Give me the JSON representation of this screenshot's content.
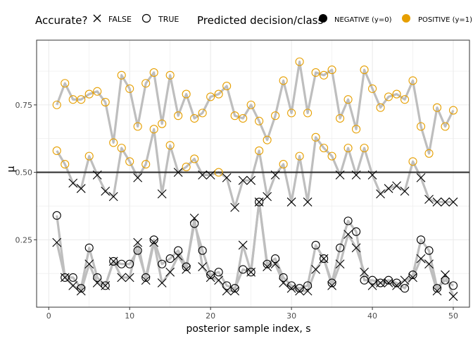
{
  "chart_data": {
    "type": "scatter",
    "title": "",
    "xlabel": "posterior sample index, s",
    "ylabel": "μ",
    "xlim": [
      -1.5,
      52
    ],
    "ylim": [
      0.0,
      0.99
    ],
    "x_ticks": [
      0,
      10,
      20,
      30,
      40,
      50
    ],
    "y_ticks": [
      0.25,
      0.5,
      0.75
    ],
    "y_tick_labels": [
      "0.25",
      "0.50",
      "0.75"
    ],
    "threshold": 0.5,
    "grid": true,
    "legend_position": "top",
    "legend": {
      "accurate_title": "Accurate?",
      "accurate_false": "FALSE",
      "accurate_true": "TRUE",
      "class_title": "Predicted decision/class",
      "class_negative": "NEGATIVE (y=0)",
      "class_positive": "POSITIVE (y=1)"
    },
    "colors": {
      "negative": "#000000",
      "positive": "#E69F00",
      "line": "#BEBEBE",
      "threshold": "#333333",
      "panel_border": "#333333",
      "grid": "#EBEBEB"
    },
    "x": [
      1,
      2,
      3,
      4,
      5,
      6,
      7,
      8,
      9,
      10,
      11,
      12,
      13,
      14,
      15,
      16,
      17,
      18,
      19,
      20,
      21,
      22,
      23,
      24,
      25,
      26,
      27,
      28,
      29,
      30,
      31,
      32,
      33,
      34,
      35,
      36,
      37,
      38,
      39,
      40,
      41,
      42,
      43,
      44,
      45,
      46,
      47,
      48,
      49,
      50
    ],
    "series": [
      {
        "y": [
          0.75,
          0.83,
          0.77,
          0.77,
          0.79,
          0.8,
          0.76,
          0.61,
          0.86,
          0.81,
          0.67,
          0.83,
          0.87,
          0.68,
          0.86,
          0.71,
          0.79,
          0.7,
          0.72,
          0.78,
          0.79,
          0.82,
          0.71,
          0.7,
          0.75,
          0.69,
          0.62,
          0.71,
          0.84,
          0.72,
          0.91,
          0.72,
          0.87,
          0.86,
          0.88,
          0.7,
          0.77,
          0.66,
          0.88,
          0.81,
          0.74,
          0.78,
          0.79,
          0.77,
          0.84,
          0.67,
          0.57,
          0.74,
          0.67,
          0.73
        ],
        "cls": [
          "P",
          "P",
          "P",
          "P",
          "P",
          "P",
          "P",
          "P",
          "P",
          "P",
          "P",
          "P",
          "P",
          "P",
          "P",
          "P",
          "P",
          "P",
          "P",
          "P",
          "P",
          "P",
          "P",
          "P",
          "P",
          "P",
          "P",
          "P",
          "P",
          "P",
          "P",
          "P",
          "P",
          "P",
          "P",
          "P",
          "P",
          "P",
          "P",
          "P",
          "P",
          "P",
          "P",
          "P",
          "P",
          "P",
          "P",
          "P",
          "P",
          "P"
        ],
        "acc": [
          "T",
          "T",
          "T",
          "T",
          "T",
          "T",
          "T",
          "T",
          "T",
          "T",
          "T",
          "T",
          "T",
          "T",
          "T",
          "T",
          "T",
          "T",
          "T",
          "T",
          "T",
          "T",
          "T",
          "T",
          "T",
          "T",
          "T",
          "T",
          "T",
          "T",
          "T",
          "T",
          "T",
          "T",
          "T",
          "T",
          "T",
          "T",
          "T",
          "T",
          "T",
          "T",
          "T",
          "T",
          "T",
          "T",
          "T",
          "T",
          "T",
          "T"
        ]
      },
      {
        "y": [
          0.58,
          0.53,
          0.46,
          0.44,
          0.56,
          0.49,
          0.43,
          0.41,
          0.59,
          0.54,
          0.48,
          0.53,
          0.66,
          0.42,
          0.6,
          0.5,
          0.52,
          0.55,
          0.49,
          0.49,
          0.5,
          0.48,
          0.37,
          0.47,
          0.47,
          0.58,
          0.41,
          0.49,
          0.53,
          0.39,
          0.56,
          0.39,
          0.63,
          0.59,
          0.56,
          0.49,
          0.59,
          0.49,
          0.59,
          0.49,
          0.42,
          0.44,
          0.45,
          0.43,
          0.54,
          0.48,
          0.4,
          0.39,
          0.39,
          0.39
        ],
        "cls": [
          "P",
          "P",
          "N",
          "N",
          "P",
          "N",
          "N",
          "N",
          "P",
          "P",
          "N",
          "P",
          "P",
          "N",
          "P",
          "N",
          "P",
          "P",
          "N",
          "N",
          "P",
          "N",
          "N",
          "N",
          "N",
          "P",
          "N",
          "N",
          "P",
          "N",
          "P",
          "N",
          "P",
          "P",
          "P",
          "N",
          "P",
          "N",
          "P",
          "N",
          "N",
          "N",
          "N",
          "N",
          "P",
          "N",
          "N",
          "N",
          "N",
          "N"
        ],
        "acc": [
          "T",
          "T",
          "F",
          "F",
          "T",
          "F",
          "F",
          "F",
          "T",
          "T",
          "F",
          "T",
          "T",
          "F",
          "T",
          "F",
          "T",
          "T",
          "F",
          "F",
          "T",
          "F",
          "F",
          "F",
          "F",
          "T",
          "F",
          "F",
          "T",
          "F",
          "T",
          "F",
          "T",
          "T",
          "T",
          "F",
          "T",
          "F",
          "T",
          "F",
          "F",
          "F",
          "F",
          "F",
          "T",
          "F",
          "F",
          "F",
          "F",
          "F"
        ]
      },
      {
        "y": [
          0.34,
          0.11,
          0.11,
          0.07,
          0.22,
          0.11,
          0.08,
          0.17,
          0.16,
          0.16,
          0.21,
          0.11,
          0.25,
          0.16,
          0.18,
          0.21,
          0.15,
          0.31,
          0.21,
          0.12,
          0.13,
          0.08,
          0.07,
          0.14,
          0.13,
          0.39,
          0.16,
          0.18,
          0.11,
          0.08,
          0.07,
          0.08,
          0.23,
          0.18,
          0.09,
          0.22,
          0.32,
          0.28,
          0.1,
          0.1,
          0.09,
          0.1,
          0.09,
          0.07,
          0.12,
          0.25,
          0.21,
          0.07,
          0.1,
          0.08
        ],
        "cls": [
          "N",
          "N",
          "N",
          "N",
          "N",
          "N",
          "N",
          "N",
          "N",
          "N",
          "N",
          "N",
          "N",
          "N",
          "N",
          "N",
          "N",
          "N",
          "N",
          "N",
          "N",
          "N",
          "N",
          "N",
          "N",
          "N",
          "N",
          "N",
          "N",
          "N",
          "N",
          "N",
          "N",
          "N",
          "N",
          "N",
          "N",
          "N",
          "N",
          "N",
          "N",
          "N",
          "N",
          "N",
          "N",
          "N",
          "N",
          "N",
          "N",
          "N"
        ],
        "acc": [
          "T",
          "T",
          "T",
          "T",
          "T",
          "T",
          "T",
          "T",
          "T",
          "T",
          "T",
          "T",
          "T",
          "T",
          "T",
          "T",
          "T",
          "T",
          "T",
          "T",
          "T",
          "T",
          "T",
          "T",
          "T",
          "T",
          "T",
          "T",
          "T",
          "T",
          "T",
          "T",
          "T",
          "T",
          "T",
          "T",
          "T",
          "T",
          "T",
          "T",
          "T",
          "T",
          "T",
          "T",
          "T",
          "T",
          "T",
          "T",
          "T",
          "T"
        ]
      },
      {
        "y": [
          0.24,
          0.11,
          0.08,
          0.06,
          0.16,
          0.09,
          0.08,
          0.17,
          0.11,
          0.11,
          0.24,
          0.1,
          0.24,
          0.09,
          0.13,
          0.19,
          0.14,
          0.33,
          0.15,
          0.11,
          0.1,
          0.06,
          0.06,
          0.23,
          0.13,
          0.39,
          0.15,
          0.16,
          0.09,
          0.07,
          0.06,
          0.06,
          0.14,
          0.18,
          0.08,
          0.16,
          0.27,
          0.22,
          0.13,
          0.08,
          0.09,
          0.09,
          0.08,
          0.1,
          0.11,
          0.18,
          0.16,
          0.06,
          0.12,
          0.04
        ],
        "cls": [
          "N",
          "N",
          "N",
          "N",
          "N",
          "N",
          "N",
          "N",
          "N",
          "N",
          "N",
          "N",
          "N",
          "N",
          "N",
          "N",
          "N",
          "N",
          "N",
          "N",
          "N",
          "N",
          "N",
          "N",
          "N",
          "N",
          "N",
          "N",
          "N",
          "N",
          "N",
          "N",
          "N",
          "N",
          "N",
          "N",
          "N",
          "N",
          "N",
          "N",
          "N",
          "N",
          "N",
          "N",
          "N",
          "N",
          "N",
          "N",
          "N",
          "N"
        ],
        "acc": [
          "F",
          "F",
          "F",
          "F",
          "F",
          "F",
          "F",
          "F",
          "F",
          "F",
          "F",
          "F",
          "F",
          "F",
          "F",
          "F",
          "F",
          "F",
          "F",
          "F",
          "F",
          "F",
          "F",
          "F",
          "F",
          "F",
          "F",
          "F",
          "F",
          "F",
          "F",
          "F",
          "F",
          "F",
          "F",
          "F",
          "F",
          "F",
          "F",
          "F",
          "F",
          "F",
          "F",
          "F",
          "F",
          "F",
          "F",
          "F",
          "F",
          "F"
        ]
      }
    ]
  }
}
